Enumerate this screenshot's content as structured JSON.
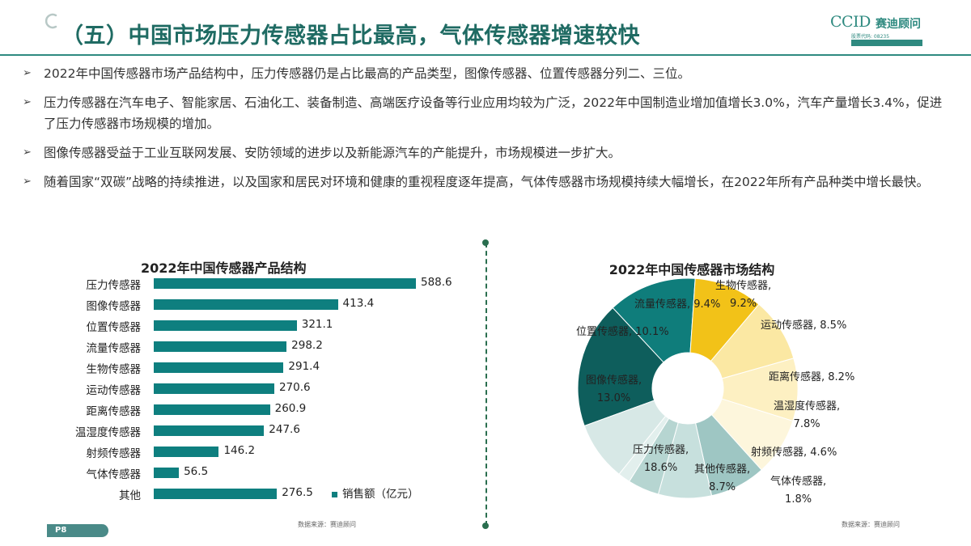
{
  "header": {
    "title": "（五）中国市场压力传感器占比最高，气体传感器增速较快",
    "logo": {
      "mark": "CCID",
      "name": "赛迪顾问",
      "code": "股票代码: 08235",
      "slogan": "咨 询 · 规 划"
    }
  },
  "bullets": [
    "2022年中国传感器市场产品结构中，压力传感器仍是占比最高的产品类型，图像传感器、位置传感器分列二、三位。",
    "压力传感器在汽车电子、智能家居、石油化工、装备制造、高端医疗设备等行业应用均较为广泛，2022年中国制造业增加值增长3.0%，汽车产量增长3.4%，促进了压力传感器市场规模的增加。",
    "图像传感器受益于工业互联网发展、安防领域的进步以及新能源汽车的产能提升，市场规模进一步扩大。",
    "随着国家“双碳”战略的持续推进，以及国家和居民对环境和健康的重视程度逐年提高，气体传感器市场规模持续大幅增长，在2022年所有产品种类中增长最快。"
  ],
  "bullet_marker": "➢",
  "chart_data": [
    {
      "type": "bar",
      "orientation": "horizontal",
      "title": "2022年中国传感器产品结构",
      "categories": [
        "压力传感器",
        "图像传感器",
        "位置传感器",
        "流量传感器",
        "生物传感器",
        "运动传感器",
        "距离传感器",
        "温湿度传感器",
        "射频传感器",
        "气体传感器",
        "其他"
      ],
      "series": [
        {
          "name": "销售额（亿元）",
          "values": [
            588.6,
            413.4,
            321.1,
            298.2,
            291.4,
            270.6,
            260.9,
            247.6,
            146.2,
            56.5,
            276.5
          ]
        }
      ],
      "value_labels": [
        "588.6",
        "413.4",
        "321.1",
        "298.2",
        "291.4",
        "270.6",
        "260.9",
        "247.6",
        "146.2",
        "56.5",
        "276.5"
      ],
      "legend": "bottom-right",
      "grid": false,
      "color": "#0e7f7f",
      "source": "数据来源：赛迪顾问"
    },
    {
      "type": "pie",
      "donut": true,
      "title": "2022年中国传感器市场结构",
      "slices": [
        {
          "name": "压力传感器",
          "value": 18.6,
          "label": [
            "压力传感器,",
            "18.6%"
          ],
          "color": "#0e5e5c"
        },
        {
          "name": "图像传感器",
          "value": 13.0,
          "label": [
            "图像传感器,",
            "13.0%"
          ],
          "color": "#0f7d7b"
        },
        {
          "name": "位置传感器",
          "value": 10.1,
          "label": [
            "位置传感器, 10.1%"
          ],
          "color": "#f2c218"
        },
        {
          "name": "流量传感器",
          "value": 9.4,
          "label": [
            "流量传感器, 9.4%"
          ],
          "color": "#fbe8a3"
        },
        {
          "name": "生物传感器",
          "value": 9.2,
          "label": [
            "生物传感器,",
            "9.2%"
          ],
          "color": "#fdf0c2"
        },
        {
          "name": "运动传感器",
          "value": 8.5,
          "label": [
            "运动传感器, 8.5%"
          ],
          "color": "#fdf6dc"
        },
        {
          "name": "距离传感器",
          "value": 8.2,
          "label": [
            "距离传感器, 8.2%"
          ],
          "color": "#9ec6c3"
        },
        {
          "name": "温湿度传感器",
          "value": 7.8,
          "label": [
            "温湿度传感器,",
            "7.8%"
          ],
          "color": "#c7e0dd"
        },
        {
          "name": "射频传感器",
          "value": 4.6,
          "label": [
            "射频传感器, 4.6%"
          ],
          "color": "#b6d5d1"
        },
        {
          "name": "气体传感器",
          "value": 1.8,
          "label": [
            "气体传感器,",
            "1.8%"
          ],
          "color": "#e2efed"
        },
        {
          "name": "其他传感器",
          "value": 8.7,
          "label": [
            "其他传感器,",
            "8.7%"
          ],
          "color": "#d7e8e6"
        }
      ],
      "source": "数据来源：赛迪顾问"
    }
  ],
  "footer": {
    "page": "P8"
  },
  "colors": {
    "accent": "#2f8a80",
    "title": "#1f6b63",
    "bar": "#0e7f7f"
  }
}
